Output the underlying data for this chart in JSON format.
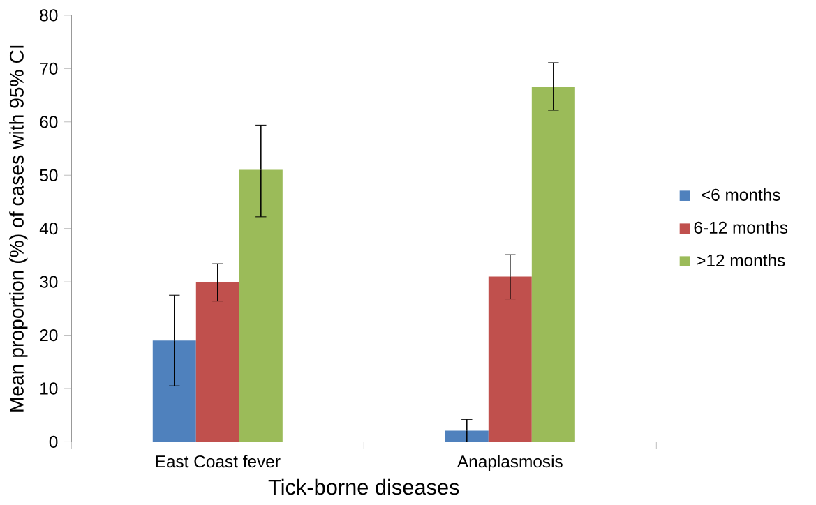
{
  "chart_data": {
    "type": "bar",
    "xlabel": "Tick-borne diseases",
    "ylabel": "Mean proportion (%) of cases with 95% CI",
    "categories": [
      "East Coast fever",
      "Anaplasmosis"
    ],
    "series": [
      {
        "name": "<6 months",
        "color": "#4f81bd",
        "values": [
          19,
          2.1
        ],
        "errors": [
          [
            10.5,
            27.5
          ],
          [
            0,
            4.2
          ]
        ]
      },
      {
        "name": "6-12 months",
        "color": "#c0504d",
        "values": [
          30,
          31
        ],
        "errors": [
          [
            26.4,
            33.4
          ],
          [
            26.8,
            35.1
          ]
        ]
      },
      {
        "name": ">12 months",
        "color": "#9bbb59",
        "values": [
          51,
          66.5
        ],
        "errors": [
          [
            42.2,
            59.4
          ],
          [
            62.2,
            71.1
          ]
        ]
      }
    ],
    "ylim": [
      0,
      80
    ],
    "yticks": [
      0,
      10,
      20,
      30,
      40,
      50,
      60,
      70,
      80
    ],
    "grid": false,
    "legend": "right"
  }
}
